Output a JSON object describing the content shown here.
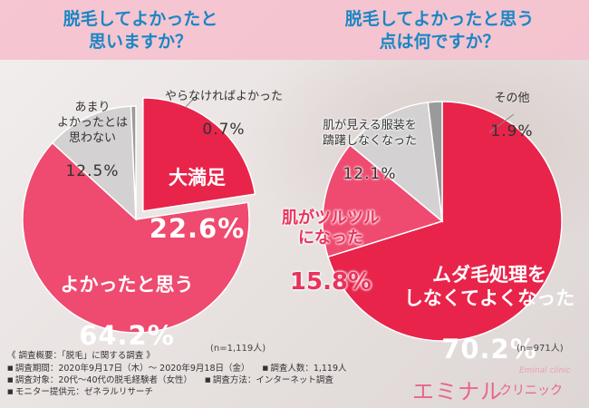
{
  "colors": {
    "header": "#f6bccd",
    "title": "#1a86c4",
    "pink": "#ef4a6f",
    "red": "#e8244a",
    "gray": "#d3d1d1",
    "darkgray": "#9a9a9a",
    "accent_text": "#e8335c"
  },
  "titles": {
    "left": "脱毛してよかったと\n思いますか？",
    "right": "脱毛してよかったと思う\n点は何ですか？"
  },
  "chart_data": [
    {
      "type": "pie",
      "title": "脱毛してよかったと思いますか？",
      "labels": [
        "大満足",
        "よかったと思う",
        "あまりよかったとは思わない",
        "やらなければよかった"
      ],
      "values": [
        22.6,
        64.2,
        12.5,
        0.7
      ],
      "display": [
        "22.6%",
        "64.2%",
        "12.5%",
        "0.7%"
      ],
      "n": "(n=1,119人)"
    },
    {
      "type": "pie",
      "title": "脱毛してよかったと思う点は何ですか？",
      "labels": [
        "ムダ毛処理をしなくてよくなった",
        "肌がツルツルになった",
        "肌が見える服装を躊躇しなくなった",
        "その他"
      ],
      "values": [
        70.2,
        15.8,
        12.1,
        1.9
      ],
      "display": [
        "70.2%",
        "15.8%",
        "12.1%",
        "1.9%"
      ],
      "n": "(n=971人)"
    }
  ],
  "left_labels": {
    "daimanzoku": {
      "t": "大満足",
      "v": "22.6%"
    },
    "yokatta": {
      "t": "よかったと思う",
      "v": "64.2%"
    },
    "amari": {
      "t": "あまり\nよかったとは\n思わない",
      "v": "12.5%"
    },
    "yaranakereba": {
      "t": "やらなければよかった",
      "v": "0.7%"
    }
  },
  "right_labels": {
    "muda": {
      "t": "ムダ毛処理を\nしなくてよくなった",
      "v": "70.2%"
    },
    "tsuru": {
      "t": "肌がツルツル\nになった",
      "v": "15.8%"
    },
    "fukusou": {
      "t": "肌が見える服装を\n躊躇しなくなった",
      "v": "12.1%"
    },
    "sonota": {
      "t": "その他",
      "v": "1.9%"
    }
  },
  "footer": {
    "head": "《 調査概要：「脱毛」に関する調査 》",
    "period": "調査期間：2020年9月17日（木）～ 2020年9月18日（金）",
    "count": "調査人数：1,119人",
    "target": "調査対象：20代～40代の脱毛経験者（女性）",
    "method": "調査方法：インターネット調査",
    "provider": "モニター提供元：ゼネラルリサーチ"
  },
  "logo": {
    "jp": "エミナル",
    "sub": "クリニック",
    "en": "Eminal clinic"
  }
}
